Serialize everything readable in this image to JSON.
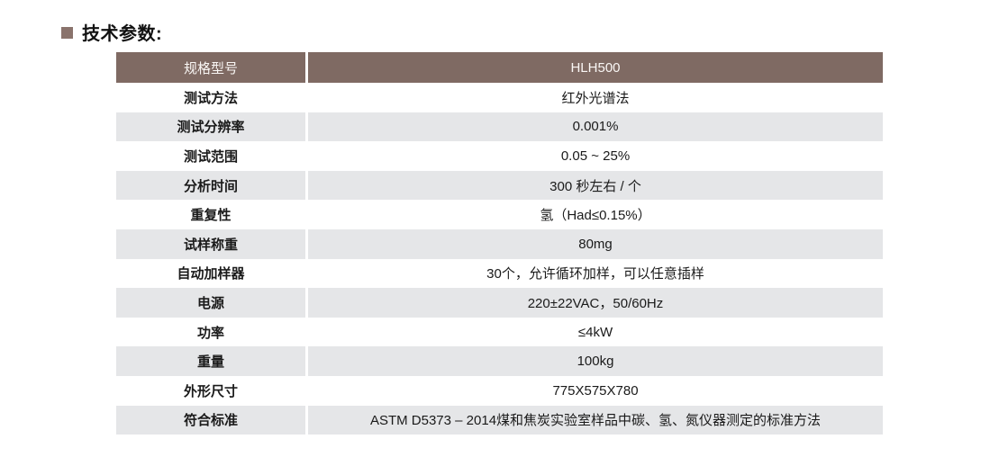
{
  "title": {
    "text": "技术参数:"
  },
  "colors": {
    "header_bg": "#7f6a63",
    "alt_row_bg": "#e5e6e8",
    "bullet": "#8a736c",
    "header_text": "#faf7f5",
    "body_text": "#1a1a1a"
  },
  "table": {
    "header": {
      "label": "规格型号",
      "value": "HLH500"
    },
    "rows": [
      {
        "label": "测试方法",
        "value": "红外光谱法"
      },
      {
        "label": "测试分辨率",
        "value": "0.001%"
      },
      {
        "label": "测试范围",
        "value": "0.05 ~ 25%"
      },
      {
        "label": "分析时间",
        "value": "300 秒左右 / 个"
      },
      {
        "label": "重复性",
        "value": "氢（Had≤0.15%）"
      },
      {
        "label": "试样称重",
        "value": "80mg"
      },
      {
        "label": "自动加样器",
        "value": "30个，允许循环加样，可以任意插样"
      },
      {
        "label": "电源",
        "value": "220±22VAC，50/60Hz"
      },
      {
        "label": "功率",
        "value": "≤4kW"
      },
      {
        "label": "重量",
        "value": "100kg"
      },
      {
        "label": "外形尺寸",
        "value": "775X575X780"
      },
      {
        "label": "符合标准",
        "value": "ASTM D5373 – 2014煤和焦炭实验室样品中碳、氢、氮仪器测定的标准方法"
      }
    ]
  }
}
